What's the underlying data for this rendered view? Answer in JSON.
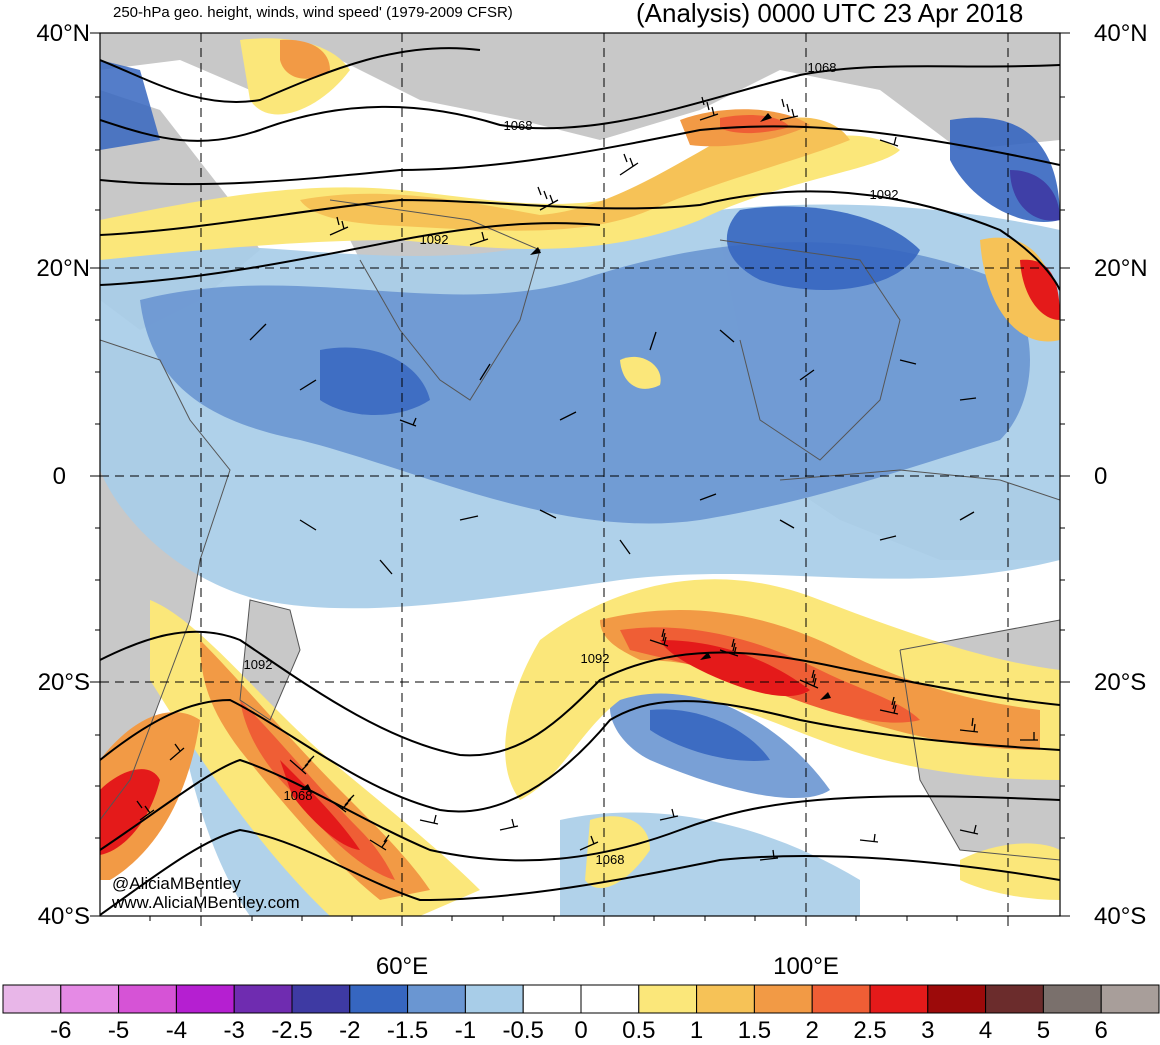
{
  "title": {
    "left": "250-hPa geo. height, winds, wind speed' (1979-2009 CFSR)",
    "right": "(Analysis) 0000 UTC 23 Apr 2018"
  },
  "axes": {
    "lat_labels": [
      "40°N",
      "20°N",
      "0",
      "20°S",
      "40°S"
    ],
    "lon_labels": [
      "60°E",
      "100°E"
    ]
  },
  "contour_labels": [
    "1068",
    "1068",
    "1092",
    "1092",
    "1092",
    "1068",
    "1068",
    "1092"
  ],
  "credit": {
    "handle": "@AliciaMBentley",
    "website": "www.AliciaMBentley.com"
  },
  "colorbar": {
    "labels": [
      "-6",
      "-5",
      "-4",
      "-3",
      "-2.5",
      "-2",
      "-1.5",
      "-1",
      "-0.5",
      "0",
      "0.5",
      "1",
      "1.5",
      "2",
      "2.5",
      "3",
      "4",
      "5",
      "6"
    ],
    "colors": [
      "#e8b6e8",
      "#e58ae5",
      "#d653d6",
      "#b51fd1",
      "#6f2cb0",
      "#3e3aa3",
      "#3666c0",
      "#6a96d2",
      "#a8cde8",
      "#ffffff",
      "#ffffff",
      "#fbe77a",
      "#f6c257",
      "#f29a45",
      "#ef5e35",
      "#e41a1a",
      "#9c0a0a",
      "#6b2c2c",
      "#7a706c",
      "#a89e9a"
    ]
  },
  "colors": {
    "land": "#c8c8c8",
    "neg_light": "#a8cde8",
    "neg_mid": "#6a96d2",
    "neg_dark": "#3666c0",
    "pos_light": "#fbe77a",
    "pos_mid": "#f6c257",
    "pos_orange": "#f29a45",
    "pos_red": "#ef5e35",
    "pos_dark": "#e41a1a"
  }
}
